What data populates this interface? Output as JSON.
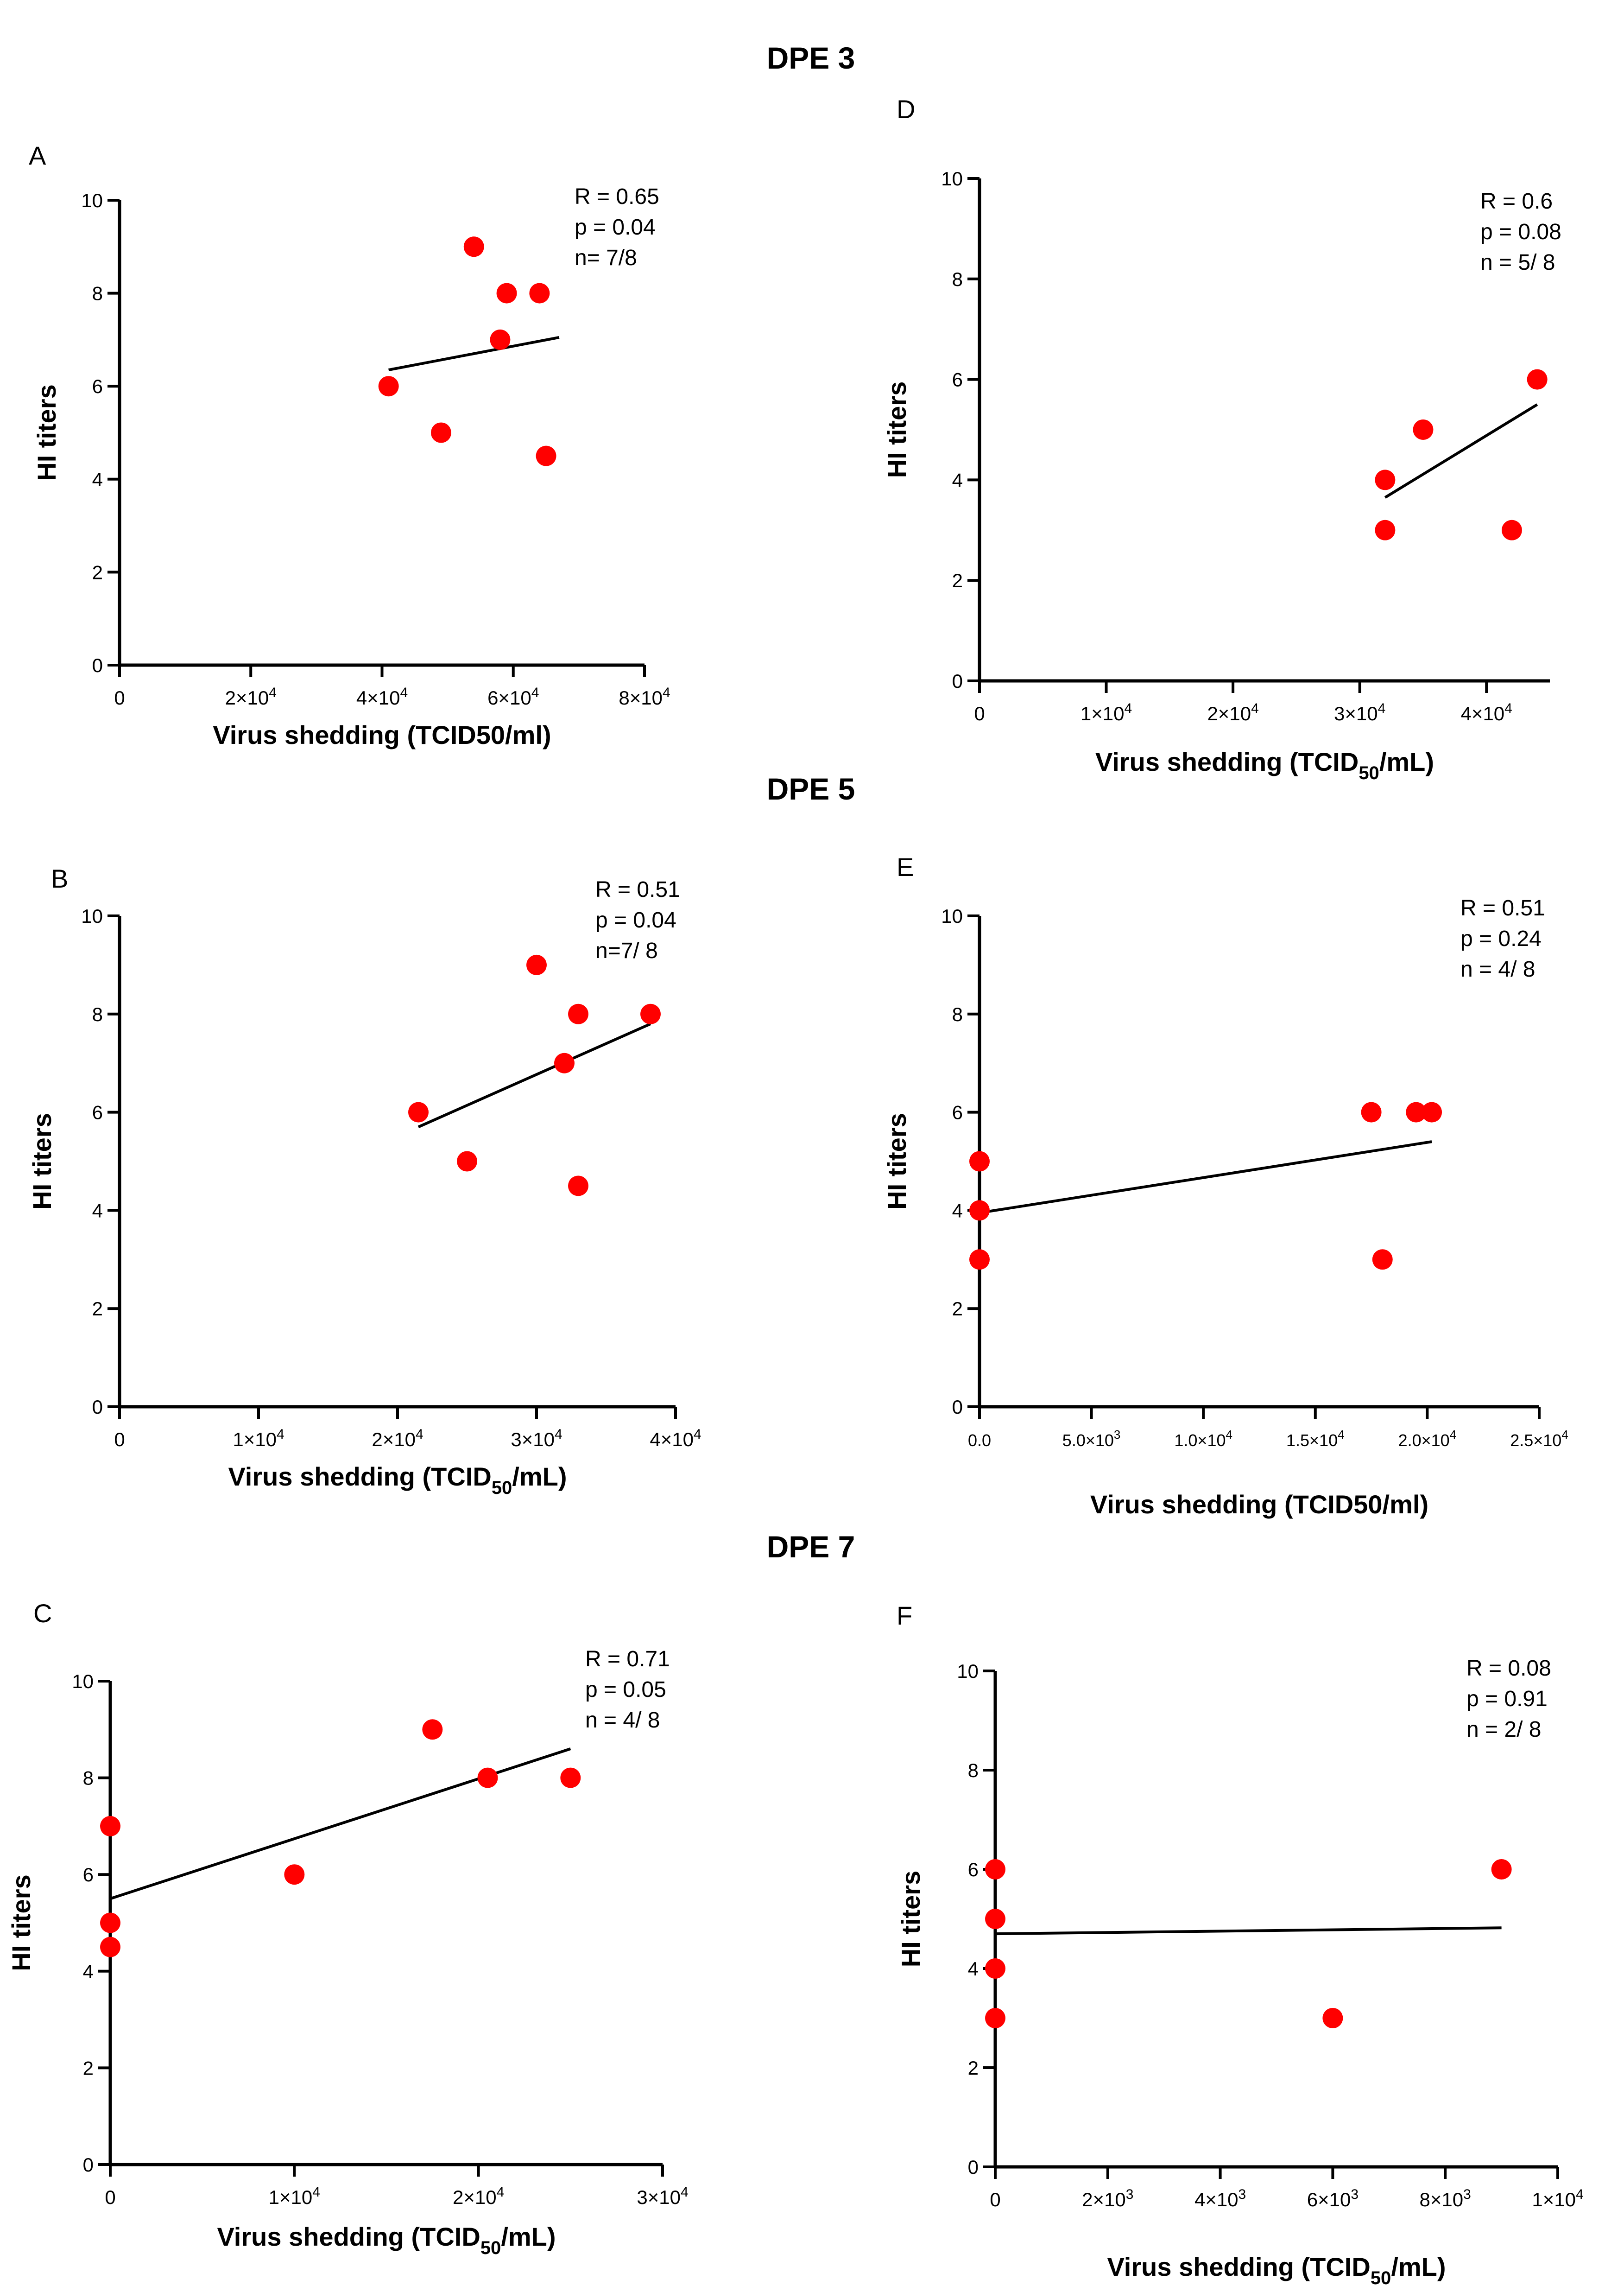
{
  "section_titles": [
    "DPE 3",
    "DPE 5",
    "DPE 7"
  ],
  "chart_data": [
    {
      "panel": "A",
      "type": "scatter",
      "section": "DPE 3",
      "xlabel_main": "Virus shedding (TCID50/ml)",
      "xlabel_sub": "",
      "xlabel_tail": "",
      "ylabel": "HI titers",
      "xlim": [
        0,
        80000
      ],
      "ylim": [
        0,
        10
      ],
      "xticks": [
        0,
        20000,
        40000,
        60000,
        80000
      ],
      "xtick_labels": [
        [
          "0",
          ""
        ],
        [
          "2×10",
          "4"
        ],
        [
          "4×10",
          "4"
        ],
        [
          "6×10",
          "4"
        ],
        [
          "8×10",
          "4"
        ]
      ],
      "yticks": [
        0,
        2,
        4,
        6,
        8,
        10
      ],
      "ytick_labels": [
        "0",
        "2",
        "4",
        "6",
        "8",
        "10"
      ],
      "points": [
        [
          41000,
          6
        ],
        [
          49000,
          5
        ],
        [
          54000,
          9
        ],
        [
          58000,
          7
        ],
        [
          59000,
          8
        ],
        [
          64000,
          8
        ],
        [
          65000,
          4.5
        ]
      ],
      "fit_line": [
        [
          41000,
          6.35
        ],
        [
          67000,
          7.05
        ]
      ],
      "stats": [
        "R = 0.65",
        "p = 0.04",
        "n= 7/8"
      ]
    },
    {
      "panel": "B",
      "type": "scatter",
      "section": "DPE 5",
      "xlabel_main": "Virus shedding (TCID",
      "xlabel_sub": "50",
      "xlabel_tail": "/mL)",
      "ylabel": "HI titers",
      "xlim": [
        0,
        40000
      ],
      "ylim": [
        0,
        10
      ],
      "xticks": [
        0,
        10000,
        20000,
        30000,
        40000
      ],
      "xtick_labels": [
        [
          "0",
          ""
        ],
        [
          "1×10",
          "4"
        ],
        [
          "2×10",
          "4"
        ],
        [
          "3×10",
          "4"
        ],
        [
          "4×10",
          "4"
        ]
      ],
      "yticks": [
        0,
        2,
        4,
        6,
        8,
        10
      ],
      "ytick_labels": [
        "0",
        "2",
        "4",
        "6",
        "8",
        "10"
      ],
      "points": [
        [
          21500,
          6
        ],
        [
          25000,
          5
        ],
        [
          30000,
          9
        ],
        [
          32000,
          7
        ],
        [
          33000,
          8
        ],
        [
          33000,
          4.5
        ],
        [
          38200,
          8
        ]
      ],
      "fit_line": [
        [
          21500,
          5.7
        ],
        [
          38200,
          7.8
        ]
      ],
      "stats": [
        "R = 0.51",
        "p = 0.04",
        "n=7/ 8"
      ]
    },
    {
      "panel": "C",
      "type": "scatter",
      "section": "DPE 7",
      "xlabel_main": "Virus shedding (TCID",
      "xlabel_sub": "50",
      "xlabel_tail": "/mL)",
      "ylabel": "HI titers",
      "xlim": [
        0,
        30000
      ],
      "ylim": [
        0,
        10
      ],
      "xticks": [
        0,
        10000,
        20000,
        30000
      ],
      "xtick_labels": [
        [
          "0",
          ""
        ],
        [
          "1×10",
          "4"
        ],
        [
          "2×10",
          "4"
        ],
        [
          "3×10",
          "4"
        ]
      ],
      "yticks": [
        0,
        2,
        4,
        6,
        8,
        10
      ],
      "ytick_labels": [
        "0",
        "2",
        "4",
        "6",
        "8",
        "10"
      ],
      "points": [
        [
          0,
          7
        ],
        [
          0,
          5
        ],
        [
          0,
          4.5
        ],
        [
          10000,
          6
        ],
        [
          17500,
          9
        ],
        [
          20500,
          8
        ],
        [
          25000,
          8
        ]
      ],
      "fit_line": [
        [
          0,
          5.5
        ],
        [
          25000,
          8.6
        ]
      ],
      "stats": [
        "R = 0.71",
        "p = 0.05",
        "n = 4/ 8"
      ]
    },
    {
      "panel": "D",
      "type": "scatter",
      "section": "DPE 3",
      "xlabel_main": "Virus shedding (TCID",
      "xlabel_sub": "50",
      "xlabel_tail": "/mL)",
      "ylabel": "HI titers",
      "xlim": [
        0,
        45000
      ],
      "ylim": [
        0,
        10
      ],
      "xticks": [
        0,
        10000,
        20000,
        30000,
        40000
      ],
      "xtick_labels": [
        [
          "0",
          ""
        ],
        [
          "1×10",
          "4"
        ],
        [
          "2×10",
          "4"
        ],
        [
          "3×10",
          "4"
        ],
        [
          "4×10",
          "4"
        ]
      ],
      "yticks": [
        0,
        2,
        4,
        6,
        8,
        10
      ],
      "ytick_labels": [
        "0",
        "2",
        "4",
        "6",
        "8",
        "10"
      ],
      "points": [
        [
          32000,
          4
        ],
        [
          32000,
          3
        ],
        [
          35000,
          5
        ],
        [
          42000,
          3
        ],
        [
          44000,
          6
        ]
      ],
      "fit_line": [
        [
          32000,
          3.65
        ],
        [
          44000,
          5.5
        ]
      ],
      "stats": [
        "R = 0.6",
        "p = 0.08",
        "n = 5/ 8"
      ]
    },
    {
      "panel": "E",
      "type": "scatter",
      "section": "DPE 5",
      "xlabel_main": "Virus shedding (TCID50/ml)",
      "xlabel_sub": "",
      "xlabel_tail": "",
      "ylabel": "HI titers",
      "xlim": [
        0,
        25000
      ],
      "ylim": [
        0,
        10
      ],
      "xticks": [
        0,
        5000,
        10000,
        15000,
        20000,
        25000
      ],
      "xtick_labels": [
        [
          "0.0",
          ""
        ],
        [
          "5.0×10",
          "3"
        ],
        [
          "1.0×10",
          "4"
        ],
        [
          "1.5×10",
          "4"
        ],
        [
          "2.0×10",
          "4"
        ],
        [
          "2.5×10",
          "4"
        ]
      ],
      "yticks": [
        0,
        2,
        4,
        6,
        8,
        10
      ],
      "ytick_labels": [
        "0",
        "2",
        "4",
        "6",
        "8",
        "10"
      ],
      "points": [
        [
          0,
          5
        ],
        [
          0,
          4
        ],
        [
          0,
          3
        ],
        [
          17500,
          6
        ],
        [
          18000,
          3
        ],
        [
          19500,
          6
        ],
        [
          20200,
          6
        ]
      ],
      "fit_line": [
        [
          0,
          3.95
        ],
        [
          20200,
          5.4
        ]
      ],
      "stats": [
        "R = 0.51",
        "p = 0.24",
        "n = 4/ 8"
      ]
    },
    {
      "panel": "F",
      "type": "scatter",
      "section": "DPE 7",
      "xlabel_main": "Virus shedding (TCID",
      "xlabel_sub": "50",
      "xlabel_tail": "/mL)",
      "ylabel": "HI titers",
      "xlim": [
        0,
        10000
      ],
      "ylim": [
        0,
        10
      ],
      "xticks": [
        0,
        2000,
        4000,
        6000,
        8000,
        10000
      ],
      "xtick_labels": [
        [
          "0",
          ""
        ],
        [
          "2×10",
          "3"
        ],
        [
          "4×10",
          "3"
        ],
        [
          "6×10",
          "3"
        ],
        [
          "8×10",
          "3"
        ],
        [
          "1×10",
          "4"
        ]
      ],
      "yticks": [
        0,
        2,
        4,
        6,
        8,
        10
      ],
      "ytick_labels": [
        "0",
        "2",
        "4",
        "6",
        "8",
        "10"
      ],
      "points": [
        [
          0,
          6
        ],
        [
          0,
          5
        ],
        [
          0,
          4
        ],
        [
          0,
          3
        ],
        [
          6000,
          3
        ],
        [
          9000,
          6
        ]
      ],
      "fit_line": [
        [
          0,
          4.7
        ],
        [
          9000,
          4.82
        ]
      ],
      "stats": [
        "R = 0.08",
        "p = 0.91",
        "n = 2/ 8"
      ]
    }
  ],
  "colors": {
    "point": "#ff0000",
    "axis": "#000000",
    "line": "#000000"
  }
}
